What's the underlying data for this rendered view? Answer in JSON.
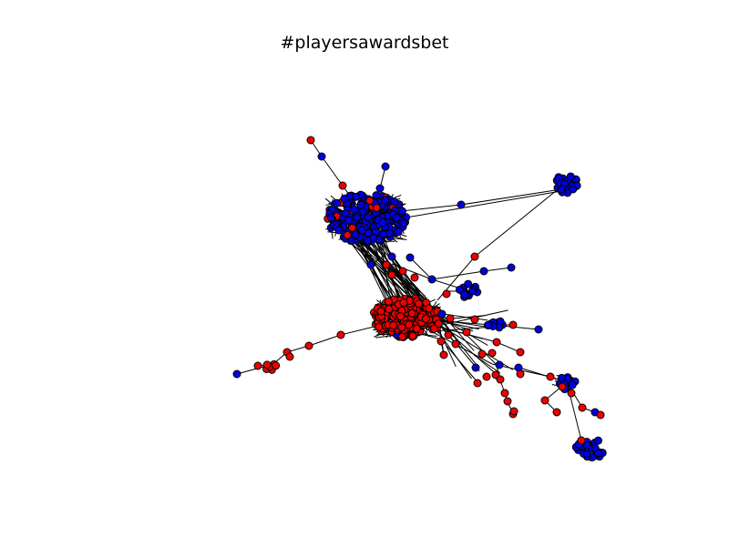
{
  "title": "#playersawardsbet",
  "colors": {
    "red": "#ee0000",
    "blue": "#0000dd",
    "edge": "#000000"
  },
  "clusters": [
    {
      "id": "blue-main",
      "color": "blue"
    },
    {
      "id": "red-main",
      "color": "red"
    },
    {
      "id": "blue-top-right",
      "color": "blue"
    },
    {
      "id": "blue-mid-right",
      "color": "blue"
    },
    {
      "id": "blue-small-right",
      "color": "blue"
    },
    {
      "id": "blue-lower-right",
      "color": "blue"
    },
    {
      "id": "blue-bottom-right",
      "color": "blue"
    },
    {
      "id": "red-left-arm",
      "color": "red"
    }
  ]
}
